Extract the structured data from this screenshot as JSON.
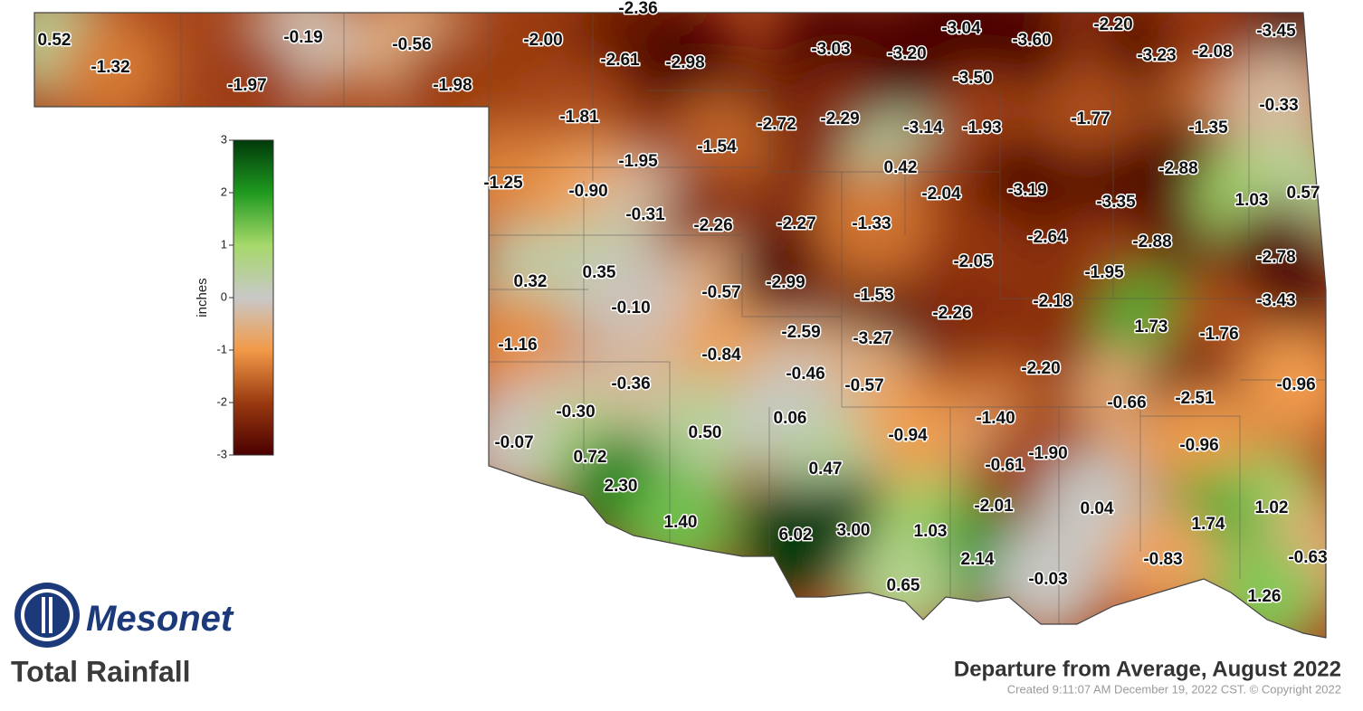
{
  "title": "Total Rainfall",
  "subtitle": "Departure from Average, August 2022",
  "credit": "Created 9:11:07 AM December 19, 2022 CST. © Copyright 2022",
  "logo": "Mesonet",
  "legend": {
    "label": "inches",
    "ticks": [
      3,
      2,
      1,
      0,
      -1,
      -2,
      -3
    ],
    "colors": [
      "#003a0a",
      "#1f9a1f",
      "#a6d86a",
      "#c8c8c8",
      "#f29a48",
      "#9a3a10",
      "#4a0000"
    ]
  },
  "stations": [
    "0.52",
    "-1.32",
    "-0.19",
    "-0.56",
    "-1.97",
    "-1.98",
    "-2.36",
    "-2.00",
    "-2.61",
    "-2.98",
    "-3.03",
    "-3.20",
    "-3.04",
    "-3.60",
    "-2.20",
    "-3.45",
    "-3.23",
    "-2.08",
    "-3.50",
    "-1.81",
    "-2.72",
    "-2.29",
    "-3.14",
    "-1.93",
    "-1.77",
    "-1.35",
    "-0.33",
    "-1.54",
    "-1.95",
    "0.42",
    "-2.88",
    "-1.25",
    "-0.90",
    "-2.04",
    "-3.19",
    "-3.35",
    "1.03",
    "0.57",
    "-0.31",
    "-2.26",
    "-2.27",
    "-1.33",
    "-2.64",
    "-2.88",
    "-2.78",
    "-2.05",
    "0.32",
    "0.35",
    "-0.57",
    "-2.99",
    "-1.53",
    "-1.95",
    "-2.18",
    "-3.43",
    "-0.10",
    "-2.26",
    "1.73",
    "-1.76",
    "-1.16",
    "-2.59",
    "-3.27",
    "-0.84",
    "-2.20",
    "-0.46",
    "-0.57",
    "-0.36",
    "-0.66",
    "-2.51",
    "-0.96",
    "-0.30",
    "0.50",
    "0.06",
    "-1.40",
    "-0.94",
    "-0.07",
    "0.72",
    "-0.96",
    "-0.61",
    "-1.90",
    "0.47",
    "2.30",
    "-2.01",
    "0.04",
    "1.02",
    "1.40",
    "6.02",
    "3.00",
    "1.03",
    "1.74",
    "2.14",
    "-0.03",
    "-0.83",
    "-0.63",
    "0.65",
    "1.26"
  ]
}
